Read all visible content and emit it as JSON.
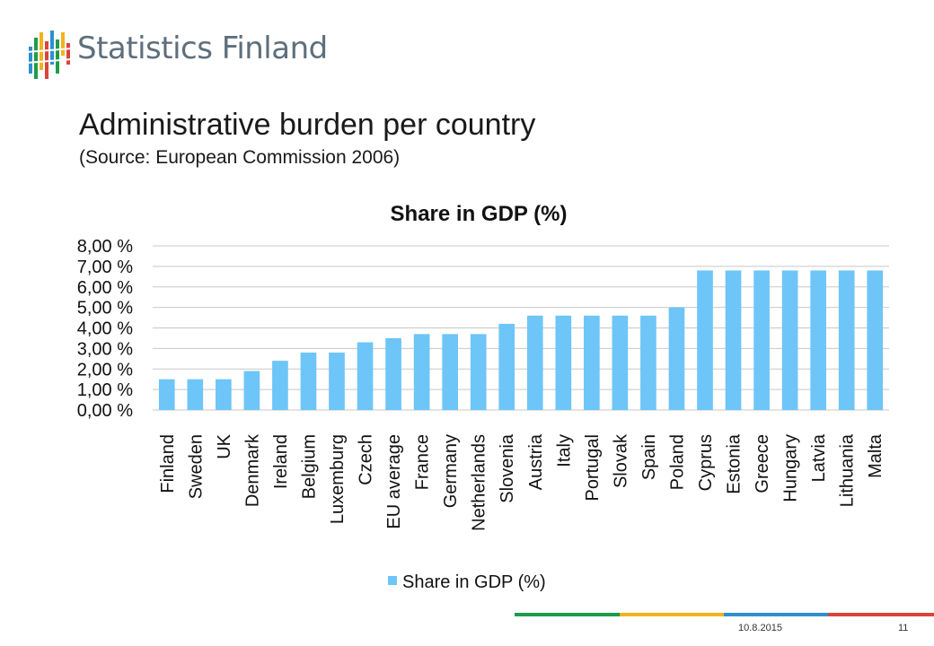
{
  "brand": {
    "name": "Statistics Finland"
  },
  "slide": {
    "title": "Administrative burden per country",
    "subtitle": "(Source: European Commission 2006)"
  },
  "footer": {
    "date": "10.8.2015",
    "page": "11"
  },
  "colors": {
    "bar": "#6ec5f7",
    "grid": "#c8c8c8",
    "footer_line": [
      "#1f9b4a",
      "#f2b21b",
      "#2d8fd1",
      "#d9443c"
    ]
  },
  "chart_data": {
    "type": "bar",
    "title": "Share in GDP (%)",
    "xlabel": "",
    "ylabel": "",
    "ylim": [
      0,
      8
    ],
    "y_ticks": [
      "0,00 %",
      "1,00 %",
      "2,00 %",
      "3,00 %",
      "4,00 %",
      "5,00 %",
      "6,00 %",
      "7,00 %",
      "8,00 %"
    ],
    "grid": true,
    "legend_position": "bottom",
    "categories": [
      "Finland",
      "Sweden",
      "UK",
      "Denmark",
      "Ireland",
      "Belgium",
      "Luxemburg",
      "Czech",
      "EU average",
      "France",
      "Germany",
      "Netherlands",
      "Slovenia",
      "Austria",
      "Italy",
      "Portugal",
      "Slovak",
      "Spain",
      "Poland",
      "Cyprus",
      "Estonia",
      "Greece",
      "Hungary",
      "Latvia",
      "Lithuania",
      "Malta"
    ],
    "series": [
      {
        "name": "Share in GDP (%)",
        "values": [
          1.5,
          1.5,
          1.5,
          1.9,
          2.4,
          2.8,
          2.8,
          3.3,
          3.5,
          3.7,
          3.7,
          3.7,
          4.2,
          4.6,
          4.6,
          4.6,
          4.6,
          4.6,
          5.0,
          6.8,
          6.8,
          6.8,
          6.8,
          6.8,
          6.8,
          6.8
        ]
      }
    ]
  }
}
